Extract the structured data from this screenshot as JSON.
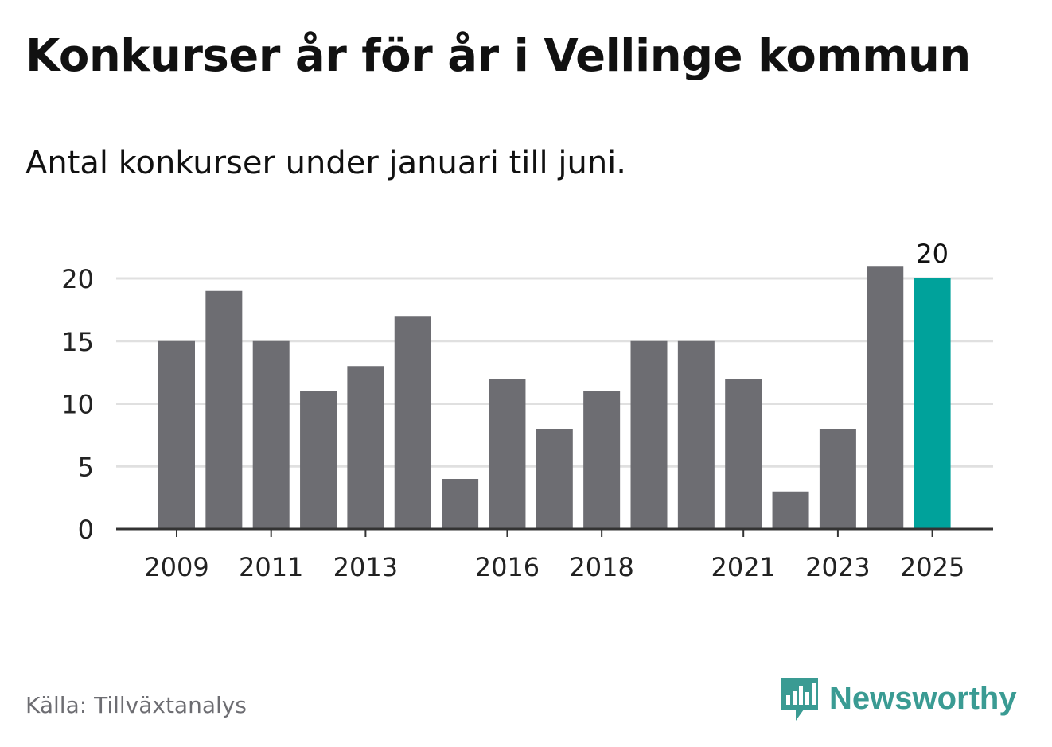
{
  "title": "Konkurser år för år i Vellinge kommun",
  "subtitle": "Antal konkurser under januari till juni.",
  "source": "Källa: Tillväxtanalys",
  "brand": "Newsworthy",
  "colors": {
    "bar": "#6d6d72",
    "highlight": "#00a29b",
    "grid": "#e0e0e0",
    "axis": "#333333",
    "text": "#111111",
    "brand": "#3a9b93"
  },
  "chart_data": {
    "type": "bar",
    "categories": [
      "2009",
      "2010",
      "2011",
      "2012",
      "2013",
      "2014",
      "2015",
      "2016",
      "2017",
      "2018",
      "2019",
      "2020",
      "2021",
      "2022",
      "2023",
      "2024",
      "2025"
    ],
    "values": [
      15,
      19,
      15,
      11,
      13,
      17,
      4,
      12,
      8,
      11,
      15,
      15,
      12,
      3,
      8,
      21,
      20
    ],
    "x_tick_labels": [
      "2009",
      "2011",
      "2013",
      "2016",
      "2018",
      "2021",
      "2023",
      "2025"
    ],
    "y_ticks": [
      0,
      5,
      10,
      15,
      20
    ],
    "ylim": [
      0,
      21
    ],
    "highlight_category": "2025",
    "data_labels": [
      {
        "category": "2025",
        "text": "20"
      }
    ],
    "grid": true,
    "xlabel": "",
    "ylabel": ""
  }
}
